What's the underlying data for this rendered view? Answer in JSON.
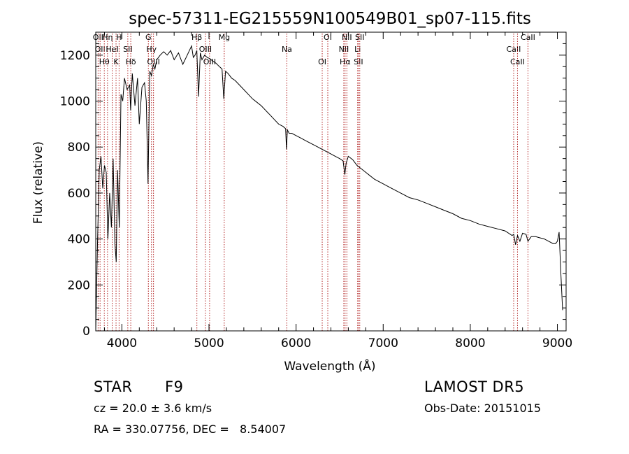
{
  "chart_data": {
    "type": "line",
    "title": "spec-57311-EG215559N100549B01_sp07-115.fits",
    "xlabel": "Wavelength (Å)",
    "ylabel": "Flux (relative)",
    "xlim": [
      3700,
      9100
    ],
    "ylim": [
      0,
      1300
    ],
    "xticks": [
      4000,
      5000,
      6000,
      7000,
      8000,
      9000
    ],
    "yticks": [
      0,
      200,
      400,
      600,
      800,
      1000,
      1200
    ],
    "grid": false,
    "series": [
      {
        "x": [
          3700,
          3720,
          3740,
          3760,
          3780,
          3800,
          3820,
          3840,
          3860,
          3880,
          3900,
          3920,
          3935,
          3950,
          3970,
          3990,
          4010,
          4030,
          4060,
          4090,
          4100,
          4120,
          4150,
          4180,
          4200,
          4230,
          4260,
          4280,
          4300,
          4320,
          4340,
          4360,
          4380,
          4400,
          4440,
          4480,
          4520,
          4560,
          4600,
          4650,
          4700,
          4750,
          4800,
          4820,
          4840,
          4860,
          4880,
          4900,
          4920,
          4950,
          4980,
          5010,
          5040,
          5080,
          5120,
          5150,
          5170,
          5190,
          5220,
          5260,
          5300,
          5350,
          5400,
          5450,
          5500,
          5550,
          5600,
          5650,
          5700,
          5750,
          5800,
          5850,
          5880,
          5890,
          5900,
          5920,
          5950,
          6000,
          6050,
          6100,
          6150,
          6200,
          6250,
          6300,
          6350,
          6400,
          6450,
          6500,
          6540,
          6560,
          6575,
          6600,
          6650,
          6700,
          6750,
          6800,
          6850,
          6900,
          7000,
          7100,
          7200,
          7300,
          7400,
          7500,
          7600,
          7700,
          7800,
          7900,
          8000,
          8100,
          8200,
          8300,
          8400,
          8480,
          8498,
          8520,
          8542,
          8570,
          8600,
          8640,
          8662,
          8700,
          8750,
          8800,
          8850,
          8900,
          8950,
          8980,
          9000,
          9020,
          9040,
          9060
        ],
        "y": [
          0,
          380,
          700,
          760,
          620,
          720,
          690,
          400,
          600,
          450,
          750,
          380,
          300,
          700,
          450,
          1030,
          1000,
          1100,
          1050,
          1070,
          960,
          1120,
          980,
          1100,
          900,
          1060,
          1080,
          1000,
          640,
          1130,
          1110,
          1160,
          1140,
          1180,
          1200,
          1215,
          1200,
          1220,
          1180,
          1210,
          1160,
          1200,
          1240,
          1190,
          1200,
          1220,
          1020,
          1210,
          1180,
          1200,
          1190,
          1185,
          1175,
          1165,
          1150,
          1140,
          1010,
          1130,
          1120,
          1100,
          1090,
          1070,
          1050,
          1030,
          1010,
          995,
          980,
          960,
          940,
          920,
          900,
          890,
          880,
          790,
          875,
          860,
          860,
          850,
          840,
          830,
          820,
          810,
          800,
          790,
          780,
          770,
          760,
          750,
          740,
          680,
          730,
          760,
          745,
          720,
          705,
          690,
          675,
          660,
          640,
          620,
          600,
          580,
          570,
          555,
          540,
          525,
          510,
          490,
          480,
          465,
          455,
          445,
          435,
          415,
          420,
          375,
          415,
          390,
          425,
          420,
          390,
          410,
          410,
          405,
          400,
          390,
          380,
          380,
          390,
          430,
          250,
          90
        ]
      }
    ],
    "line_markers": [
      {
        "wavelength": 3727,
        "label": "OII"
      },
      {
        "wavelength": 3750,
        "label": "OII"
      },
      {
        "wavelength": 3798,
        "label": "Hθ"
      },
      {
        "wavelength": 3835,
        "label": "Hη"
      },
      {
        "wavelength": 3889,
        "label": "HeI"
      },
      {
        "wavelength": 3933,
        "label": "K"
      },
      {
        "wavelength": 3968,
        "label": "H"
      },
      {
        "wavelength": 4068,
        "label": "SII"
      },
      {
        "wavelength": 4102,
        "label": "Hδ"
      },
      {
        "wavelength": 4304,
        "label": "G"
      },
      {
        "wavelength": 4340,
        "label": "Hγ"
      },
      {
        "wavelength": 4363,
        "label": "OIII"
      },
      {
        "wavelength": 4861,
        "label": "Hβ"
      },
      {
        "wavelength": 4959,
        "label": "OIII"
      },
      {
        "wavelength": 5007,
        "label": "OIII"
      },
      {
        "wavelength": 5175,
        "label": "Mg"
      },
      {
        "wavelength": 5894,
        "label": "Na"
      },
      {
        "wavelength": 6300,
        "label": "OI"
      },
      {
        "wavelength": 6364,
        "label": "OI"
      },
      {
        "wavelength": 6548,
        "label": "NII"
      },
      {
        "wavelength": 6563,
        "label": "Hα"
      },
      {
        "wavelength": 6583,
        "label": "NII"
      },
      {
        "wavelength": 6707,
        "label": "Li"
      },
      {
        "wavelength": 6716,
        "label": "SII"
      },
      {
        "wavelength": 6731,
        "label": "SII"
      },
      {
        "wavelength": 8498,
        "label": "CaII"
      },
      {
        "wavelength": 8542,
        "label": "CaII"
      },
      {
        "wavelength": 8662,
        "label": "CaII"
      }
    ],
    "colors": {
      "spectrum": "#000000",
      "markers": "#b22222",
      "axes": "#000000"
    }
  },
  "info": {
    "object_class": "STAR",
    "subclass": "F9",
    "survey": "LAMOST DR5",
    "cz": "cz = 20.0 ± 3.6 km/s",
    "obs_date": "Obs-Date: 20151015",
    "radec": "RA = 330.07756, DEC =   8.54007"
  }
}
